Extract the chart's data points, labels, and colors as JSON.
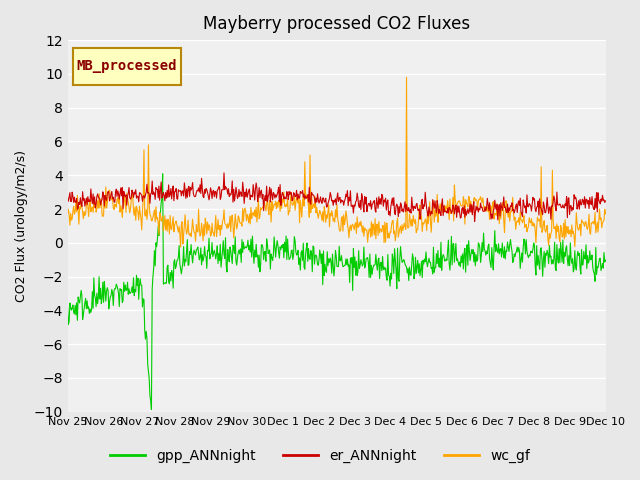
{
  "title": "Mayberry processed CO2 Fluxes",
  "ylabel": "CO2 Flux (urology/m2/s)",
  "ylim": [
    -10,
    12
  ],
  "yticks": [
    -10,
    -8,
    -6,
    -4,
    -2,
    0,
    2,
    4,
    6,
    8,
    10,
    12
  ],
  "bg_color": "#e8e8e8",
  "plot_bg_color": "#f0f0f0",
  "legend_label": "MB_processed",
  "legend_bg": "#ffffc0",
  "legend_edge": "#b8860b",
  "legend_text_color": "#8b0000",
  "series_colors": {
    "gpp_ANNnight": "#00cc00",
    "er_ANNnight": "#cc0000",
    "wc_gf": "#ffa500"
  },
  "linewidth": 0.8,
  "seed": 42,
  "n_points": 720,
  "xtick_labels": [
    "Nov 25",
    "Nov 26",
    "Nov 27",
    "Nov 28",
    "Nov 29",
    "Nov 30",
    "Dec 1",
    "Dec 2",
    "Dec 3",
    "Dec 4",
    "Dec 5",
    "Dec 6",
    "Dec 7",
    "Dec 8",
    "Dec 9",
    "Dec 10"
  ]
}
